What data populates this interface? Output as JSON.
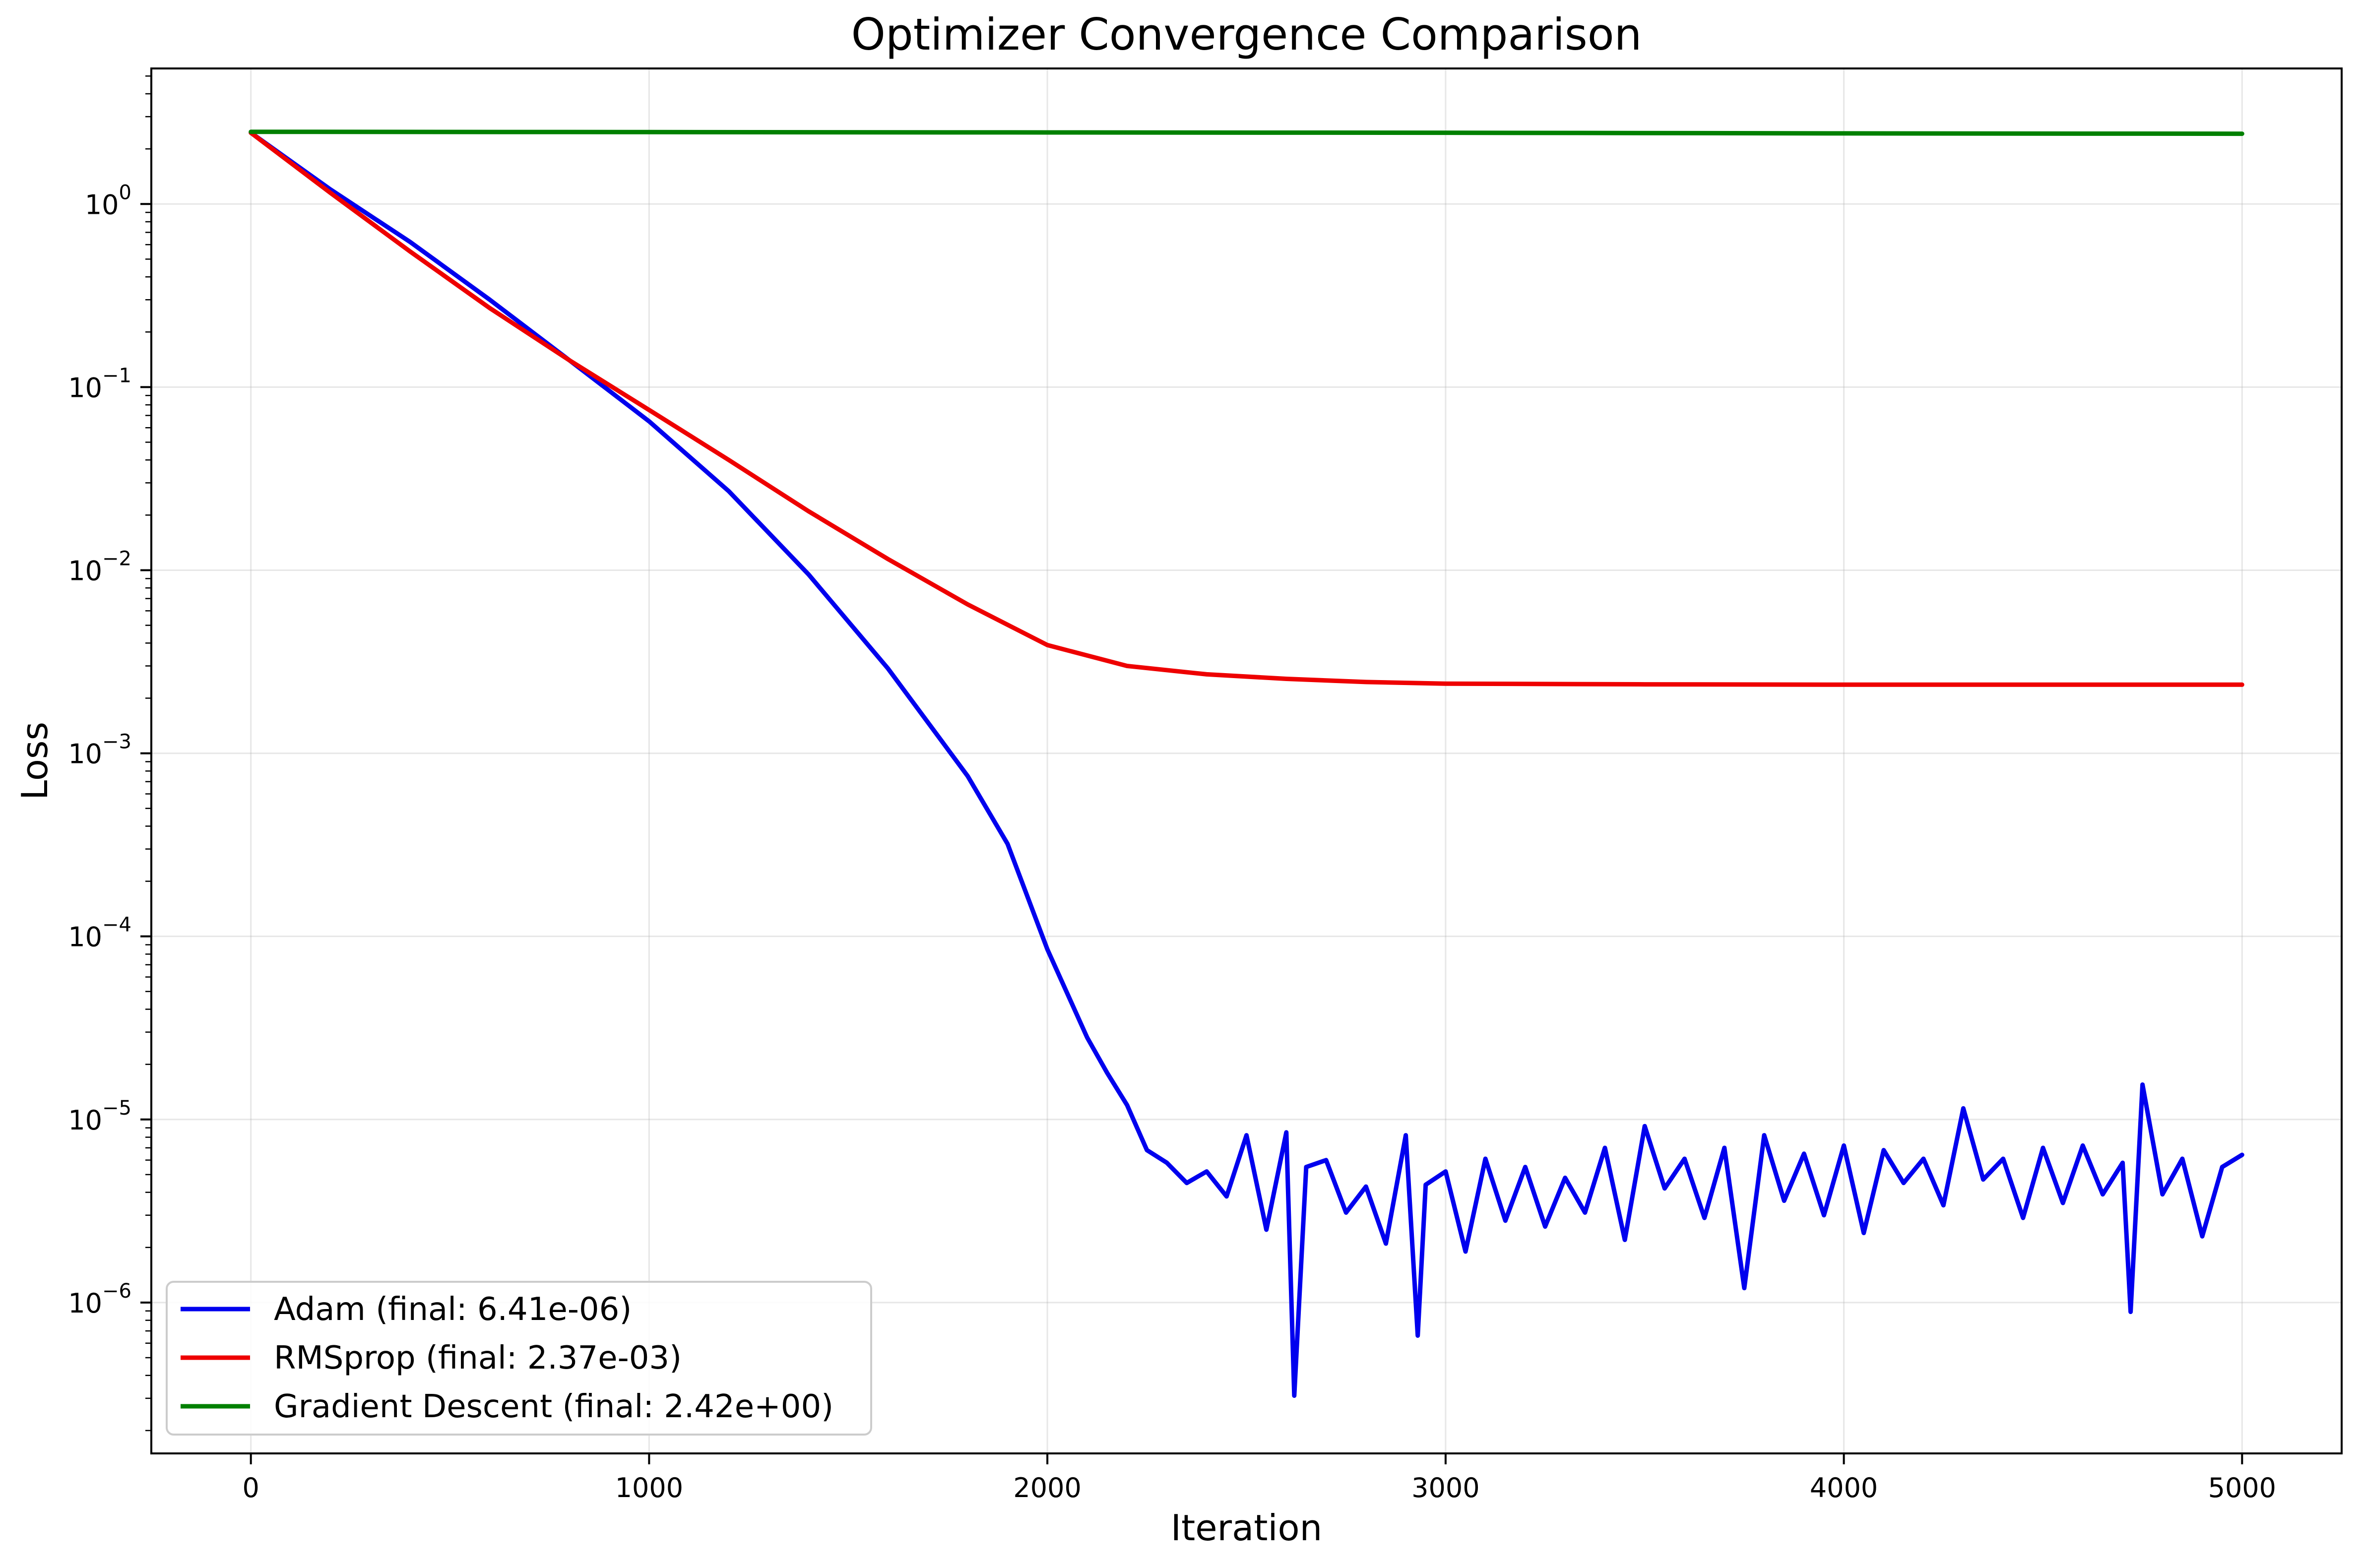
{
  "chart_data": {
    "type": "line",
    "title": "Optimizer Convergence Comparison",
    "xlabel": "Iteration",
    "ylabel": "Loss",
    "yscale": "log",
    "xlim": [
      -250,
      5250
    ],
    "ylim": [
      1.5e-07,
      5.5
    ],
    "xticks": [
      0,
      1000,
      2000,
      3000,
      4000,
      5000
    ],
    "xtick_labels": [
      "0",
      "1000",
      "2000",
      "3000",
      "4000",
      "5000"
    ],
    "yticks": [
      {
        "value": 1,
        "base": "10",
        "exp": "0"
      },
      {
        "value": 0.1,
        "base": "10",
        "exp": "−1"
      },
      {
        "value": 0.01,
        "base": "10",
        "exp": "−2"
      },
      {
        "value": 0.001,
        "base": "10",
        "exp": "−3"
      },
      {
        "value": 0.0001,
        "base": "10",
        "exp": "−4"
      },
      {
        "value": 1e-05,
        "base": "10",
        "exp": "−5"
      },
      {
        "value": 1e-06,
        "base": "10",
        "exp": "−6"
      }
    ],
    "grid": true,
    "legend_position": "lower-left",
    "series": [
      {
        "name": "Adam (final: 6.41e-06)",
        "color": "#0000ee",
        "x": [
          0,
          200,
          400,
          600,
          800,
          1000,
          1200,
          1400,
          1600,
          1800,
          1900,
          2000,
          2100,
          2150,
          2200,
          2250,
          2300,
          2350,
          2400,
          2450,
          2500,
          2550,
          2600,
          2620,
          2650,
          2700,
          2750,
          2800,
          2850,
          2900,
          2930,
          2950,
          3000,
          3050,
          3100,
          3150,
          3200,
          3250,
          3300,
          3350,
          3400,
          3450,
          3500,
          3550,
          3600,
          3650,
          3700,
          3750,
          3800,
          3850,
          3900,
          3950,
          4000,
          4050,
          4100,
          4150,
          4200,
          4250,
          4300,
          4350,
          4400,
          4450,
          4500,
          4550,
          4600,
          4650,
          4700,
          4720,
          4750,
          4800,
          4850,
          4900,
          4950,
          5000
        ],
        "y": [
          2.45,
          1.2,
          0.62,
          0.3,
          0.14,
          0.065,
          0.027,
          0.0095,
          0.0029,
          0.00075,
          0.00032,
          8.5e-05,
          2.8e-05,
          1.8e-05,
          1.2e-05,
          6.8e-06,
          5.8e-06,
          4.5e-06,
          5.2e-06,
          3.8e-06,
          8.2e-06,
          2.5e-06,
          8.5e-06,
          3.1e-07,
          5.5e-06,
          6e-06,
          3.1e-06,
          4.3e-06,
          2.1e-06,
          8.2e-06,
          6.6e-07,
          4.4e-06,
          5.2e-06,
          1.9e-06,
          6.1e-06,
          2.8e-06,
          5.5e-06,
          2.6e-06,
          4.8e-06,
          3.1e-06,
          7e-06,
          2.2e-06,
          9.2e-06,
          4.2e-06,
          6.1e-06,
          2.9e-06,
          7e-06,
          1.2e-06,
          8.2e-06,
          3.6e-06,
          6.5e-06,
          3e-06,
          7.2e-06,
          2.4e-06,
          6.8e-06,
          4.5e-06,
          6.1e-06,
          3.4e-06,
          1.15e-05,
          4.7e-06,
          6.1e-06,
          2.9e-06,
          7e-06,
          3.5e-06,
          7.2e-06,
          3.9e-06,
          5.8e-06,
          8.9e-07,
          1.55e-05,
          3.9e-06,
          6.1e-06,
          2.3e-06,
          5.5e-06,
          6.41e-06
        ]
      },
      {
        "name": "RMSprop (final: 2.37e-03)",
        "color": "#ee0000",
        "x": [
          0,
          200,
          400,
          600,
          800,
          1000,
          1200,
          1400,
          1600,
          1800,
          2000,
          2200,
          2400,
          2600,
          2800,
          3000,
          3500,
          4000,
          4500,
          5000
        ],
        "y": [
          2.45,
          1.15,
          0.55,
          0.27,
          0.14,
          0.075,
          0.04,
          0.021,
          0.0115,
          0.0065,
          0.0039,
          0.003,
          0.0027,
          0.00255,
          0.00245,
          0.0024,
          0.00238,
          0.00237,
          0.00237,
          0.00237
        ]
      },
      {
        "name": "Gradient Descent (final: 2.42e+00)",
        "color": "#008000",
        "x": [
          0,
          1000,
          2000,
          3000,
          4000,
          5000
        ],
        "y": [
          2.48,
          2.47,
          2.46,
          2.45,
          2.43,
          2.42
        ]
      }
    ]
  }
}
